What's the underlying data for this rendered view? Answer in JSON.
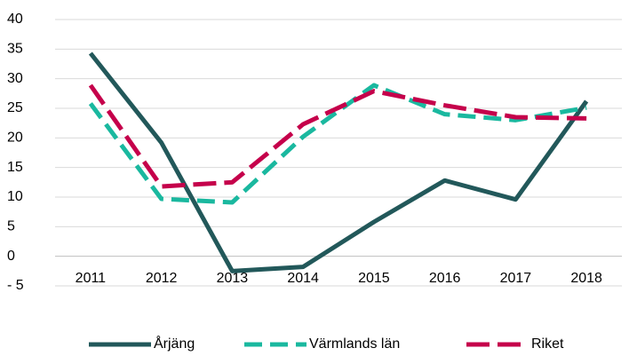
{
  "chart_data": {
    "type": "line",
    "categories": [
      "2011",
      "2012",
      "2013",
      "2014",
      "2015",
      "2016",
      "2017",
      "2018"
    ],
    "series": [
      {
        "name": "Årjäng",
        "color": "#22585a",
        "dash": "solid",
        "values": [
          34.3,
          19.2,
          -2.5,
          -1.8,
          5.8,
          12.8,
          9.6,
          26.2
        ]
      },
      {
        "name": "Värmlands län",
        "color": "#1ab89f",
        "dash": "dashed",
        "values": [
          25.8,
          9.7,
          9.1,
          20.2,
          28.9,
          24.0,
          23.0,
          25.1
        ]
      },
      {
        "name": "Riket",
        "color": "#c5004b",
        "dash": "dashed",
        "values": [
          28.9,
          11.8,
          12.5,
          22.3,
          27.9,
          25.5,
          23.5,
          23.3
        ]
      }
    ],
    "ylim": [
      -5,
      40
    ],
    "yticks": [
      {
        "value": -5,
        "label": "- 5"
      },
      0,
      5,
      10,
      15,
      20,
      25,
      30,
      35,
      40
    ],
    "grid": true,
    "legend": "bottom"
  }
}
